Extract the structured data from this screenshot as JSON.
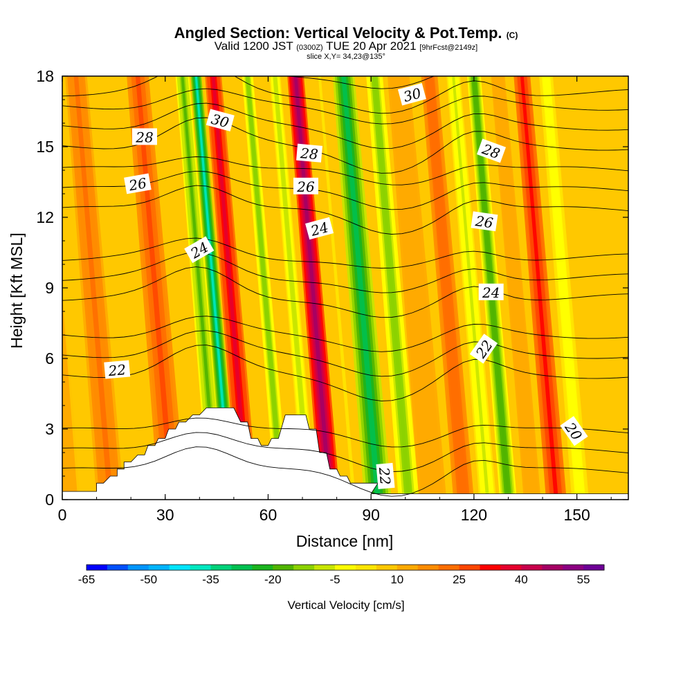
{
  "header": {
    "title": "Angled Section: Vertical Velocity & Pot.Temp.",
    "title_suffix": "(C)",
    "subtitle_a": "Valid 1200 JST",
    "subtitle_b": "(0300Z)",
    "subtitle_c": "TUE 20 Apr 2021",
    "subtitle_d": "[9hrFcst@2149z]",
    "slice": "slice X,Y= 34,23@135°"
  },
  "chart_data": {
    "type": "heatmap",
    "title": "Angled Section: Vertical Velocity & Pot.Temp.",
    "xlabel": "Distance [nm]",
    "ylabel": "Height [Kft MSL]",
    "xlim": [
      0,
      165
    ],
    "ylim": [
      0,
      18
    ],
    "xticks": [
      0,
      30,
      60,
      90,
      120,
      150
    ],
    "yticks": [
      0,
      3,
      6,
      9,
      12,
      15,
      18
    ],
    "colorbar": {
      "title": "Vertical Velocity [cm/s]",
      "tick_labels": [
        "-65",
        "-50",
        "-35",
        "-20",
        "-5",
        "10",
        "25",
        "40",
        "55"
      ],
      "colors": [
        "#0000ff",
        "#0050ff",
        "#0095ff",
        "#00b4ff",
        "#00e5ff",
        "#00e8c0",
        "#00d27a",
        "#00c050",
        "#1ab41e",
        "#50b400",
        "#8cd200",
        "#c8e600",
        "#ffff00",
        "#ffe600",
        "#ffc800",
        "#ffaa00",
        "#ff8c00",
        "#ff6e00",
        "#ff4600",
        "#ff0000",
        "#e6002d",
        "#c8004b",
        "#a50064",
        "#8c0082",
        "#6e0096"
      ]
    },
    "velocity_bands": [
      {
        "x": 2,
        "w": 7,
        "v": 12
      },
      {
        "x": 8,
        "w": 7,
        "v": 3
      },
      {
        "x": 14,
        "w": 8,
        "v": 18
      },
      {
        "x": 24,
        "w": 7,
        "v": 6
      },
      {
        "x": 32,
        "w": 8,
        "v": 24
      },
      {
        "x": 40,
        "w": 5,
        "v": 5
      },
      {
        "x": 45,
        "w": 5,
        "v": -18
      },
      {
        "x": 49,
        "w": 4,
        "v": -38
      },
      {
        "x": 54,
        "w": 6,
        "v": 34
      },
      {
        "x": 60,
        "w": 4,
        "v": 5
      },
      {
        "x": 64,
        "w": 4,
        "v": -16
      },
      {
        "x": 69,
        "w": 4,
        "v": 6
      },
      {
        "x": 72,
        "w": 4,
        "v": -10
      },
      {
        "x": 78,
        "w": 6,
        "v": 44
      },
      {
        "x": 85,
        "w": 5,
        "v": 2
      },
      {
        "x": 92,
        "w": 8,
        "v": -30
      },
      {
        "x": 101,
        "w": 6,
        "v": -16
      },
      {
        "x": 108,
        "w": 8,
        "v": 10
      },
      {
        "x": 117,
        "w": 6,
        "v": 22
      },
      {
        "x": 124,
        "w": 5,
        "v": -8
      },
      {
        "x": 130,
        "w": 5,
        "v": -22
      },
      {
        "x": 137,
        "w": 5,
        "v": 12
      },
      {
        "x": 144,
        "w": 6,
        "v": 30
      },
      {
        "x": 151,
        "w": 5,
        "v": -6
      },
      {
        "x": 158,
        "w": 6,
        "v": 4
      }
    ],
    "terrain": [
      [
        10,
        0.7
      ],
      [
        14,
        1
      ],
      [
        16,
        1.3
      ],
      [
        18,
        1.6
      ],
      [
        22,
        1.9
      ],
      [
        25,
        2.3
      ],
      [
        28,
        2.6
      ],
      [
        31,
        3
      ],
      [
        34,
        3.3
      ],
      [
        38,
        3.6
      ],
      [
        42,
        3.9
      ],
      [
        48,
        3.9
      ],
      [
        52,
        3.3
      ],
      [
        55,
        2.6
      ],
      [
        58,
        2.3
      ],
      [
        61,
        2.6
      ],
      [
        65,
        3.6
      ],
      [
        69,
        3.6
      ],
      [
        72,
        3
      ],
      [
        75,
        2
      ],
      [
        78,
        1.3
      ],
      [
        81,
        1
      ],
      [
        84,
        0.7
      ],
      [
        90,
        0.7
      ]
    ],
    "theta_contours": [
      {
        "label": "20",
        "level": 20
      },
      {
        "label": "22",
        "level": 22
      },
      {
        "label": "24",
        "level": 24
      },
      {
        "label": "26",
        "level": 26
      },
      {
        "label": "28",
        "level": 28
      },
      {
        "label": "30",
        "level": 30
      }
    ],
    "contour_labels": [
      {
        "text": "30",
        "x": 46,
        "y": 16.1,
        "rot": 15
      },
      {
        "text": "28",
        "x": 24,
        "y": 15.4,
        "rot": 0
      },
      {
        "text": "26",
        "x": 22,
        "y": 13.4,
        "rot": -10
      },
      {
        "text": "24",
        "x": 40,
        "y": 10.6,
        "rot": -30
      },
      {
        "text": "22",
        "x": 16,
        "y": 5.5,
        "rot": -5
      },
      {
        "text": "28",
        "x": 72,
        "y": 14.7,
        "rot": 5
      },
      {
        "text": "26",
        "x": 71,
        "y": 13.3,
        "rot": 0
      },
      {
        "text": "24",
        "x": 75,
        "y": 11.5,
        "rot": -15
      },
      {
        "text": "30",
        "x": 102,
        "y": 17.2,
        "rot": -15
      },
      {
        "text": "28",
        "x": 125,
        "y": 14.8,
        "rot": 20
      },
      {
        "text": "26",
        "x": 123,
        "y": 11.8,
        "rot": 8
      },
      {
        "text": "24",
        "x": 125,
        "y": 8.8,
        "rot": 0
      },
      {
        "text": "22",
        "x": 123,
        "y": 6.4,
        "rot": -55
      },
      {
        "text": "22",
        "x": 94,
        "y": 1,
        "rot": 85
      },
      {
        "text": "20",
        "x": 149,
        "y": 2.9,
        "rot": 55
      }
    ]
  }
}
